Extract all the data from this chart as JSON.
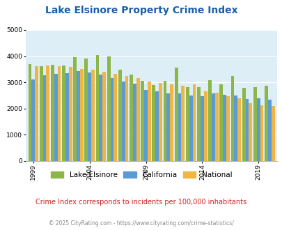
{
  "title": "Lake Elsinore Property Crime Index",
  "subtitle": "Crime Index corresponds to incidents per 100,000 inhabitants",
  "footer": "© 2025 CityRating.com - https://www.cityrating.com/crime-statistics/",
  "years": [
    1999,
    2000,
    2001,
    2002,
    2003,
    2004,
    2005,
    2006,
    2007,
    2008,
    2009,
    2010,
    2011,
    2012,
    2013,
    2014,
    2015,
    2016,
    2017,
    2018,
    2019,
    2020
  ],
  "lake_elsinore": [
    3700,
    3620,
    3660,
    3630,
    3950,
    3920,
    4050,
    4000,
    3480,
    3300,
    3060,
    2900,
    3060,
    3570,
    2820,
    2830,
    3090,
    2930,
    3230,
    2800,
    2820,
    2870
  ],
  "california": [
    3110,
    3280,
    3330,
    3360,
    3430,
    3380,
    3300,
    3170,
    3030,
    2960,
    2720,
    2650,
    2580,
    2570,
    2490,
    2470,
    2580,
    2520,
    2490,
    2370,
    2390,
    2330
  ],
  "national": [
    3620,
    3650,
    3620,
    3580,
    3520,
    3470,
    3390,
    3330,
    3230,
    3160,
    3020,
    2970,
    2920,
    2870,
    2920,
    2670,
    2600,
    2470,
    2390,
    2200,
    2130,
    2100
  ],
  "colors": {
    "lake_elsinore": "#8db649",
    "california": "#5b9bd5",
    "national": "#f0b542"
  },
  "xtick_positions": [
    0,
    5,
    10,
    15,
    20
  ],
  "xtick_labels": [
    "1999",
    "2004",
    "2009",
    "2014",
    "2019"
  ],
  "ylim": [
    0,
    5000
  ],
  "yticks": [
    0,
    1000,
    2000,
    3000,
    4000,
    5000
  ],
  "background_color": "#ddeef6",
  "title_color": "#1a5fa8",
  "subtitle_color": "#cc2222",
  "footer_color": "#888888",
  "bar_width": 0.3
}
